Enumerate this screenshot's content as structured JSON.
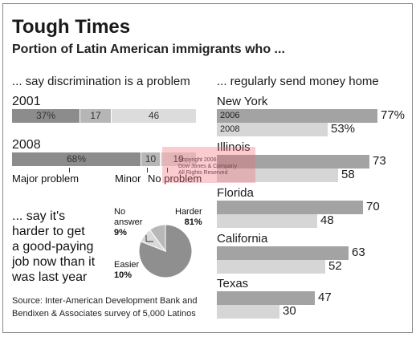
{
  "title": "Tough Times",
  "subtitle": "Portion of Latin American immigrants who ...",
  "discrimination": {
    "heading": "... say discrimination is a problem",
    "rows": [
      {
        "year": "2001",
        "values": [
          37,
          17,
          46
        ],
        "labels": [
          "37%",
          "17",
          "46"
        ]
      },
      {
        "year": "2008",
        "values": [
          68,
          10,
          19
        ],
        "labels": [
          "68%",
          "10",
          "19"
        ]
      }
    ],
    "legend": [
      "Major problem",
      "Minor",
      "No problem"
    ],
    "colors": [
      "#8c8c8c",
      "#b6b6b6",
      "#dcdcdc"
    ]
  },
  "harder": {
    "text": [
      "... say it's",
      "harder to get",
      "a good-paying",
      "job now than it",
      "was last year"
    ],
    "labels": [
      {
        "name": "Harder",
        "value": "81%"
      },
      {
        "name": "No answer",
        "name_lines": [
          "No",
          "answer"
        ],
        "value": "9%"
      },
      {
        "name": "Easier",
        "value": "10%"
      }
    ]
  },
  "remittance": {
    "heading": "... regularly send money home",
    "legend_2006": "2006",
    "legend_2008": "2008",
    "colors": {
      "y2006": "#a3a3a3",
      "y2008": "#d6d6d6"
    }
  },
  "source": [
    "Source: Inter-American Development Bank and",
    "Bendixen & Associates survey of 5,000 Latinos"
  ],
  "watermark": [
    "Copyright 2006",
    "Dow Jones & Company",
    "All Rights Reserved"
  ],
  "chart_data": [
    {
      "type": "bar",
      "title": "... say discrimination is a problem",
      "stacked": true,
      "categories": [
        "2001",
        "2008"
      ],
      "series": [
        {
          "name": "Major problem",
          "values": [
            37,
            68
          ]
        },
        {
          "name": "Minor",
          "values": [
            17,
            10
          ]
        },
        {
          "name": "No problem",
          "values": [
            46,
            19
          ]
        }
      ]
    },
    {
      "type": "pie",
      "title": "... say it's harder to get a good-paying job now than it was last year",
      "categories": [
        "Harder",
        "No answer",
        "Easier"
      ],
      "values": [
        81,
        9,
        10
      ]
    },
    {
      "type": "bar",
      "title": "... regularly send money home",
      "categories": [
        "New York",
        "Illinois",
        "Florida",
        "California",
        "Texas"
      ],
      "series": [
        {
          "name": "2006",
          "values": [
            77,
            73,
            70,
            63,
            47
          ]
        },
        {
          "name": "2008",
          "values": [
            53,
            58,
            48,
            52,
            30
          ]
        }
      ],
      "value_labels": {
        "2006": [
          "77%",
          "73",
          "70",
          "63",
          "47"
        ],
        "2008": [
          "53%",
          "58",
          "48",
          "52",
          "30"
        ]
      }
    }
  ]
}
